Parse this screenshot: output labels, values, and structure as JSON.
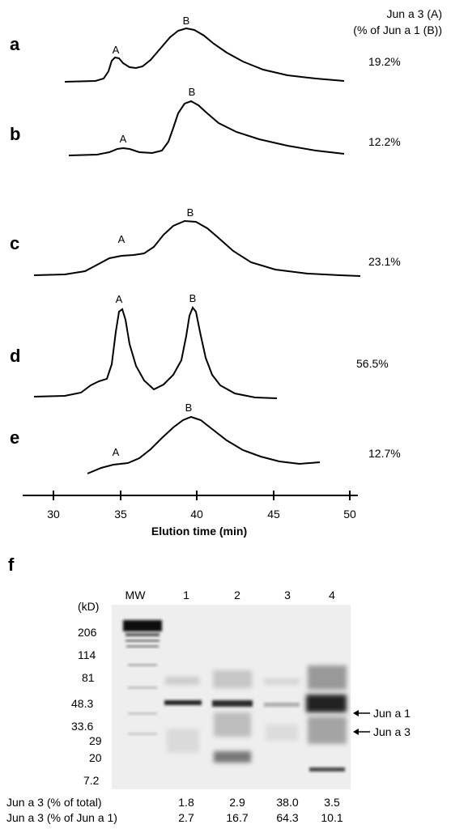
{
  "header": {
    "line1": "Jun a 3 (A)",
    "line2": "(% of Jun a 1 (B))"
  },
  "traces": [
    {
      "panel": "a",
      "peak_a_label": "A",
      "peak_b_label": "B",
      "ratio": "19.2%"
    },
    {
      "panel": "b",
      "peak_a_label": "A",
      "peak_b_label": "B",
      "ratio": "12.2%"
    },
    {
      "panel": "c",
      "peak_a_label": "A",
      "peak_b_label": "B",
      "ratio": "23.1%"
    },
    {
      "panel": "d",
      "peak_a_label": "A",
      "peak_b_label": "B",
      "ratio": "56.5%"
    },
    {
      "panel": "e",
      "peak_a_label": "A",
      "peak_b_label": "B",
      "ratio": "12.7%"
    }
  ],
  "axis": {
    "ticks": [
      "30",
      "35",
      "40",
      "45",
      "50"
    ],
    "label": "Elution time (min)"
  },
  "gel": {
    "panel": "f",
    "lane_labels": [
      "MW",
      "1",
      "2",
      "3",
      "4"
    ],
    "unit": "(kD)",
    "mw_markers": [
      "206",
      "114",
      "81",
      "48.3",
      "33.6",
      "29",
      "20",
      "7.2"
    ],
    "band_labels": [
      "Jun a 1",
      "Jun a 3"
    ],
    "row1_label": "Jun a 3 (% of total)",
    "row1_values": [
      "1.8",
      "2.9",
      "38.0",
      "3.5"
    ],
    "row2_label": "Jun a 3 (% of Jun a 1)",
    "row2_values": [
      "2.7",
      "16.7",
      "64.3",
      "10.1"
    ]
  },
  "colors": {
    "ink": "#000000",
    "gel_background": "#eeeeee",
    "band": "#1a1a1a"
  }
}
